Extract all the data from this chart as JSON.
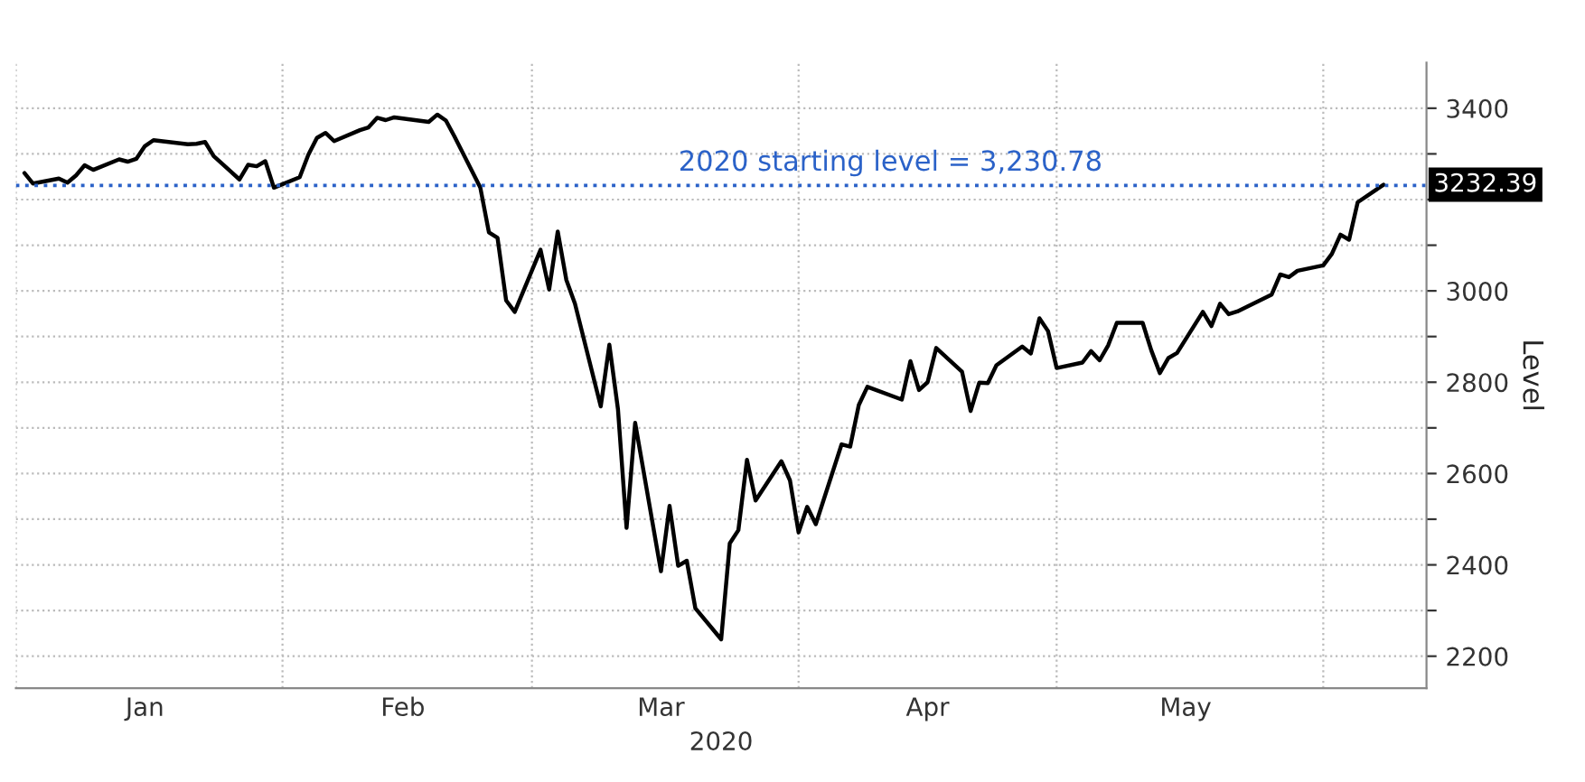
{
  "chart_data": {
    "type": "line",
    "xlabel": "2020",
    "ylabel": "Level",
    "color": "#000000",
    "x": [
      "2020-01-02",
      "2020-01-03",
      "2020-01-06",
      "2020-01-07",
      "2020-01-08",
      "2020-01-09",
      "2020-01-10",
      "2020-01-13",
      "2020-01-14",
      "2020-01-15",
      "2020-01-16",
      "2020-01-17",
      "2020-01-21",
      "2020-01-22",
      "2020-01-23",
      "2020-01-24",
      "2020-01-27",
      "2020-01-28",
      "2020-01-29",
      "2020-01-30",
      "2020-01-31",
      "2020-02-03",
      "2020-02-04",
      "2020-02-05",
      "2020-02-06",
      "2020-02-07",
      "2020-02-10",
      "2020-02-11",
      "2020-02-12",
      "2020-02-13",
      "2020-02-14",
      "2020-02-18",
      "2020-02-19",
      "2020-02-20",
      "2020-02-21",
      "2020-02-24",
      "2020-02-25",
      "2020-02-26",
      "2020-02-27",
      "2020-02-28",
      "2020-03-02",
      "2020-03-03",
      "2020-03-04",
      "2020-03-05",
      "2020-03-06",
      "2020-03-09",
      "2020-03-10",
      "2020-03-11",
      "2020-03-12",
      "2020-03-13",
      "2020-03-16",
      "2020-03-17",
      "2020-03-18",
      "2020-03-19",
      "2020-03-20",
      "2020-03-23",
      "2020-03-24",
      "2020-03-25",
      "2020-03-26",
      "2020-03-27",
      "2020-03-30",
      "2020-03-31",
      "2020-04-01",
      "2020-04-02",
      "2020-04-03",
      "2020-04-06",
      "2020-04-07",
      "2020-04-08",
      "2020-04-09",
      "2020-04-13",
      "2020-04-14",
      "2020-04-15",
      "2020-04-16",
      "2020-04-17",
      "2020-04-20",
      "2020-04-21",
      "2020-04-22",
      "2020-04-23",
      "2020-04-24",
      "2020-04-27",
      "2020-04-28",
      "2020-04-29",
      "2020-04-30",
      "2020-05-01",
      "2020-05-04",
      "2020-05-05",
      "2020-05-06",
      "2020-05-07",
      "2020-05-08",
      "2020-05-11",
      "2020-05-12",
      "2020-05-13",
      "2020-05-14",
      "2020-05-15",
      "2020-05-18",
      "2020-05-19",
      "2020-05-20",
      "2020-05-21",
      "2020-05-22",
      "2020-05-26",
      "2020-05-27",
      "2020-05-28",
      "2020-05-29",
      "2020-06-01",
      "2020-06-02",
      "2020-06-03",
      "2020-06-04",
      "2020-06-05",
      "2020-06-08"
    ],
    "values": [
      3258,
      3235,
      3246,
      3237,
      3253,
      3275,
      3265,
      3288,
      3283,
      3289,
      3317,
      3330,
      3321,
      3322,
      3326,
      3295,
      3244,
      3276,
      3273,
      3284,
      3226,
      3249,
      3298,
      3335,
      3346,
      3328,
      3352,
      3358,
      3379,
      3374,
      3380,
      3370,
      3386,
      3373,
      3338,
      3226,
      3128,
      3116,
      2979,
      2954,
      3090,
      3003,
      3130,
      3024,
      2972,
      2747,
      2882,
      2741,
      2481,
      2711,
      2386,
      2529,
      2398,
      2409,
      2305,
      2237,
      2447,
      2476,
      2630,
      2541,
      2627,
      2585,
      2471,
      2527,
      2489,
      2664,
      2659,
      2750,
      2790,
      2762,
      2846,
      2783,
      2800,
      2875,
      2823,
      2737,
      2799,
      2798,
      2837,
      2878,
      2863,
      2940,
      2912,
      2831,
      2843,
      2868,
      2848,
      2881,
      2930,
      2930,
      2870,
      2820,
      2853,
      2864,
      2954,
      2923,
      2972,
      2949,
      2955,
      2992,
      3036,
      3030,
      3044,
      3056,
      3081,
      3123,
      3112,
      3194,
      3232.39
    ],
    "xlim": [
      "2020-01-01",
      "2020-06-13"
    ],
    "xticks": [
      {
        "value": "2020-01-01",
        "label": null
      },
      {
        "value": "2020-01-16",
        "label": "Jan"
      },
      {
        "value": "2020-02-01",
        "label": null
      },
      {
        "value": "2020-02-15",
        "label": "Feb"
      },
      {
        "value": "2020-03-01",
        "label": null
      },
      {
        "value": "2020-03-16",
        "label": "Mar"
      },
      {
        "value": "2020-04-01",
        "label": null
      },
      {
        "value": "2020-04-16",
        "label": "Apr"
      },
      {
        "value": "2020-05-01",
        "label": null
      },
      {
        "value": "2020-05-16",
        "label": "May"
      },
      {
        "value": "2020-06-01",
        "label": null
      }
    ],
    "ylim": [
      2130,
      3500
    ],
    "yticks": [
      2200,
      {
        "value": 2300,
        "label": null
      },
      2400,
      {
        "value": 2500,
        "label": null
      },
      2600,
      {
        "value": 2700,
        "label": null
      },
      2800,
      {
        "value": 2900,
        "label": null
      },
      3000,
      {
        "value": 3100,
        "label": null
      },
      {
        "value": 3200,
        "label": null
      },
      {
        "value": 3300,
        "label": null
      },
      3400
    ],
    "ref_lines": [
      {
        "axis": "y",
        "value": 3230.78,
        "label": "2020 starting level = 3,230.78",
        "color": "#2b62c8",
        "line_style": "dotted"
      }
    ],
    "annotations": [
      {
        "text": "3232.39",
        "x": "2020-06-08",
        "y": 3232.39
      }
    ],
    "grid": true,
    "line_style": "solid",
    "marker": "none",
    "legend": false
  }
}
